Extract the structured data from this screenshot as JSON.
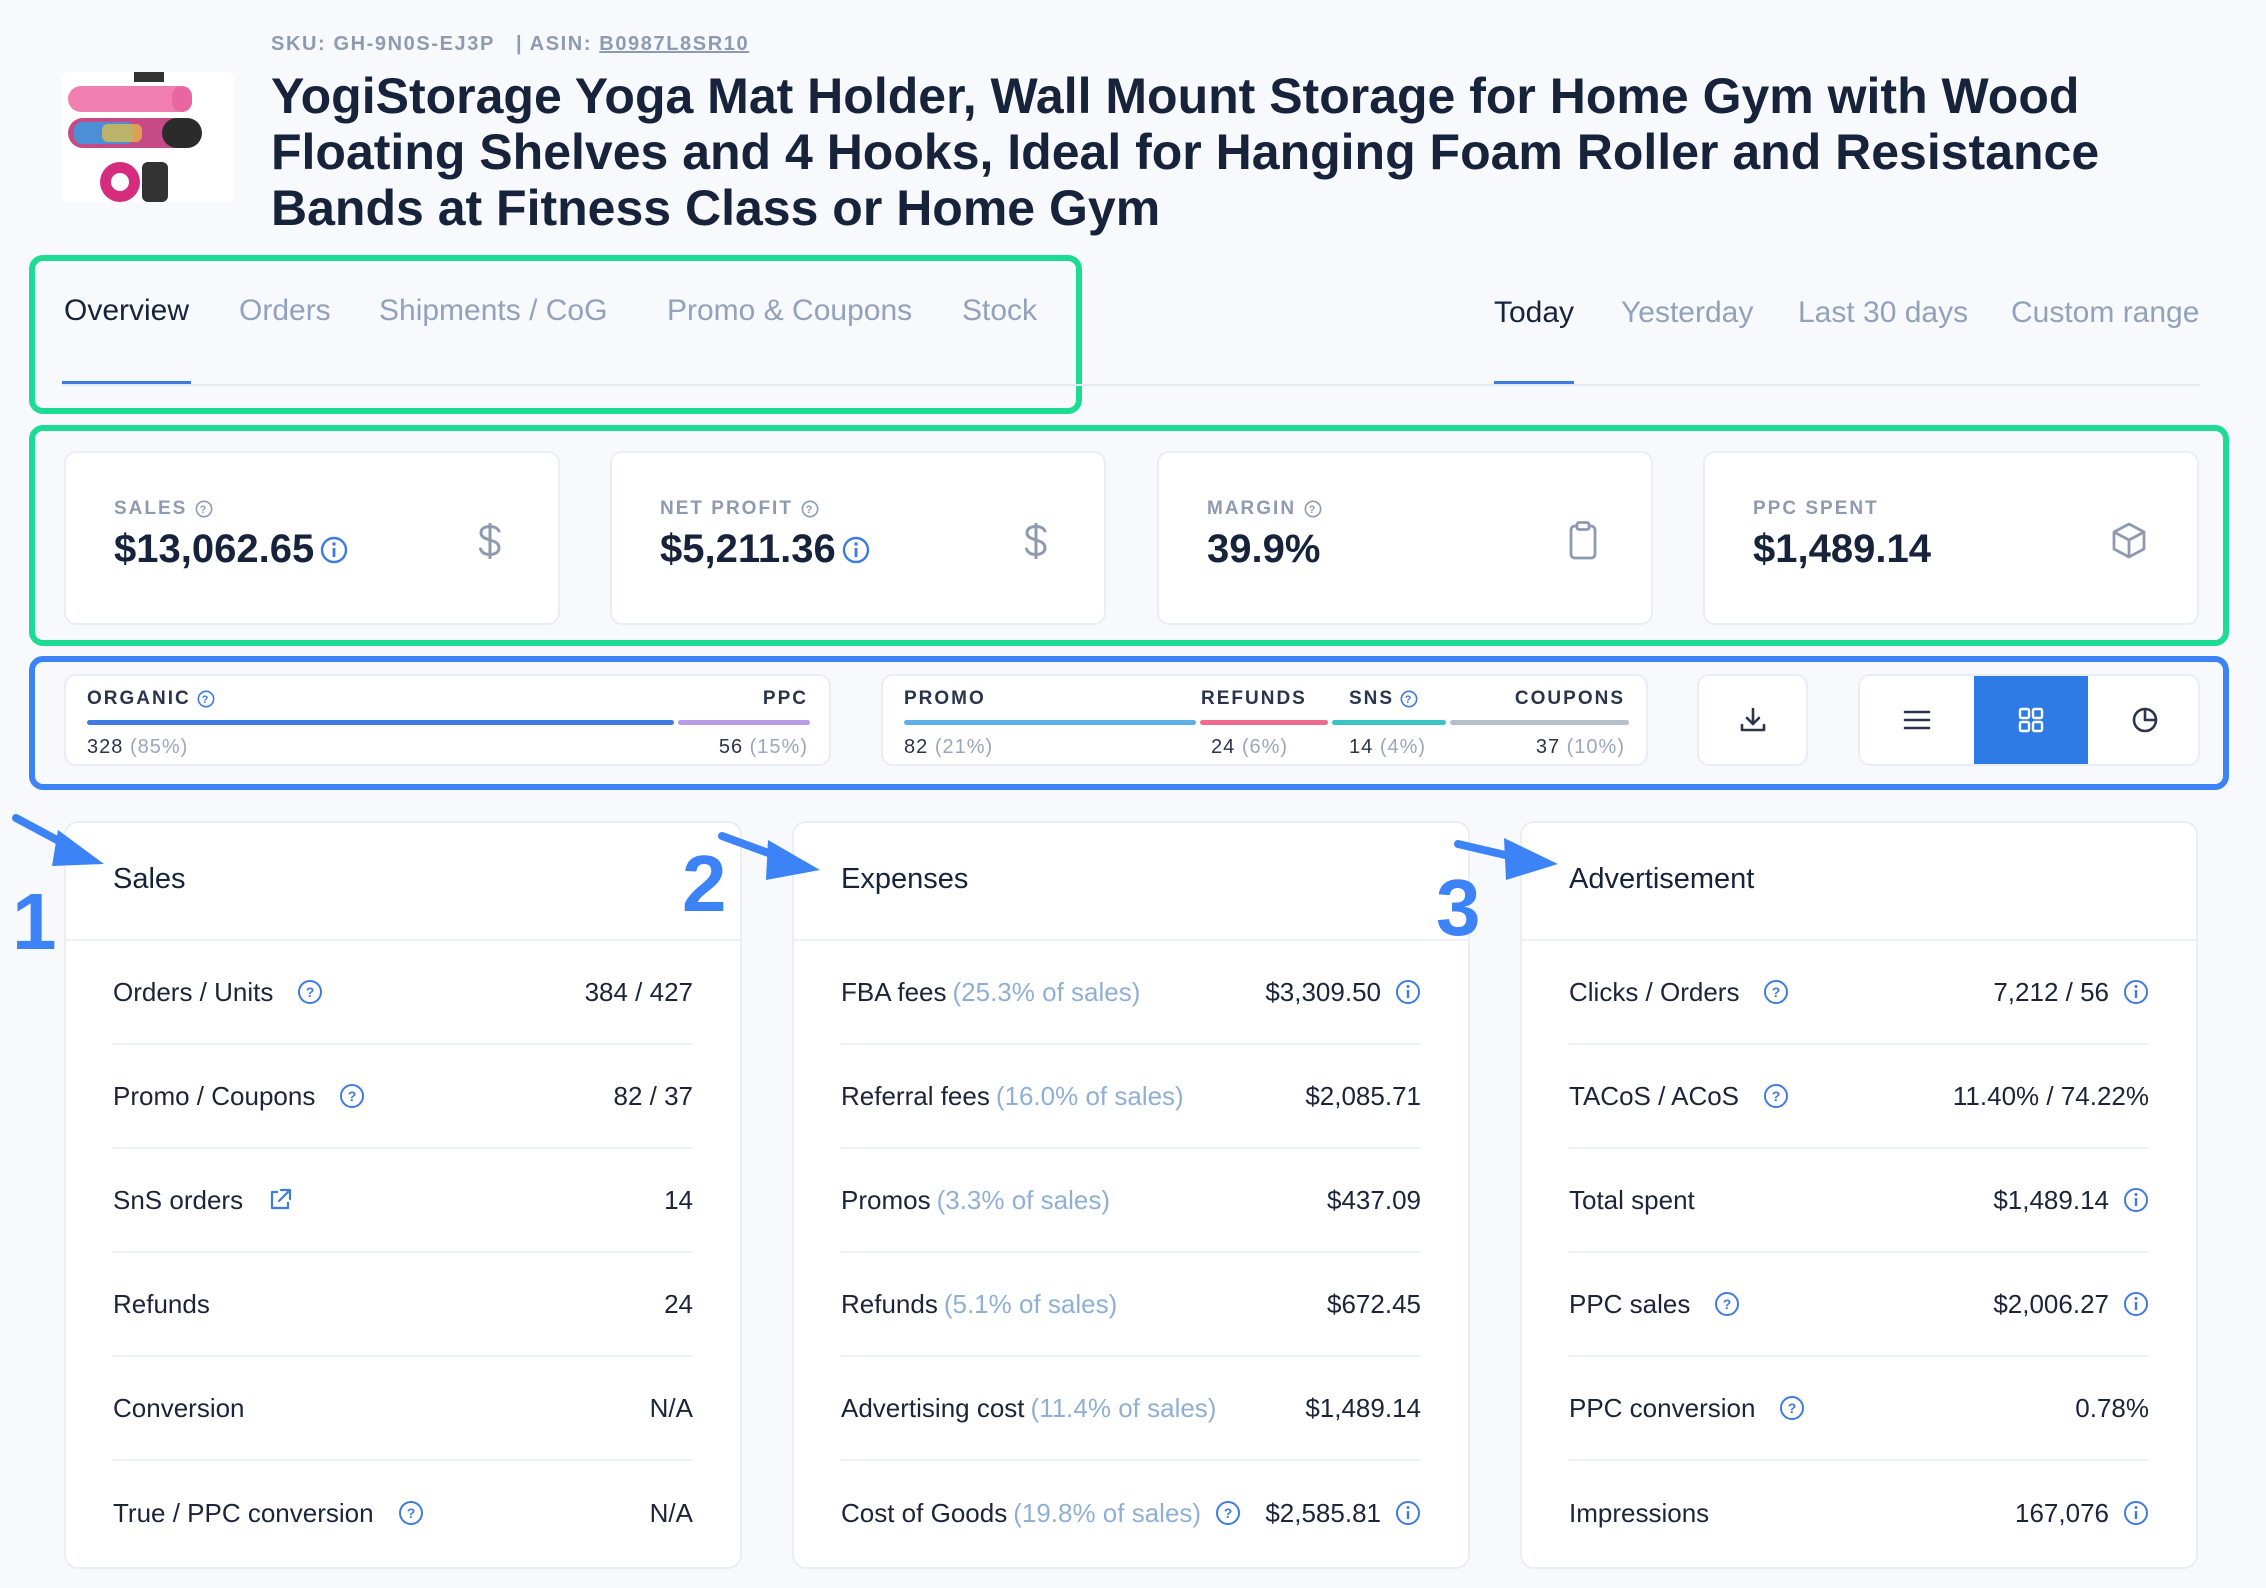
{
  "header": {
    "sku": "SKU: GH-9N0S-EJ3P",
    "asin_prefix": "| ASIN:",
    "asin": "B0987L8SR10",
    "title": "YogiStorage Yoga Mat Holder, Wall Mount Storage for Home Gym with Wood Floating Shelves and 4 Hooks, Ideal for Hanging Foam Roller and Resistance Bands at Fitness Class or Home Gym"
  },
  "tabs": [
    "Overview",
    "Orders",
    "Shipments / CoG",
    "Promo & Coupons",
    "Stock"
  ],
  "ranges": [
    "Today",
    "Yesterday",
    "Last 30 days",
    "Custom range"
  ],
  "kpis": [
    {
      "label": "SALES",
      "value": "$13,062.65",
      "icon": "dollar-icon"
    },
    {
      "label": "NET PROFIT",
      "value": "$5,211.36",
      "icon": "dollar-icon"
    },
    {
      "label": "MARGIN",
      "value": "39.9%",
      "icon": "clipboard-icon"
    },
    {
      "label": "PPC SPENT",
      "value": "$1,489.14",
      "icon": "box-icon"
    }
  ],
  "orders_split": {
    "organic": {
      "label": "ORGANIC",
      "count": "328",
      "pct": "(85%)",
      "share": 0.85
    },
    "ppc": {
      "label": "PPC",
      "count": "56",
      "pct": "(15%)",
      "share": 0.15
    }
  },
  "promo_split": {
    "promo": {
      "label": "PROMO",
      "count": "82",
      "pct": "(21%)"
    },
    "refunds": {
      "label": "REFUNDS",
      "count": "24",
      "pct": "(6%)"
    },
    "sns": {
      "label": "SNS",
      "count": "14",
      "pct": "(4%)"
    },
    "coupons": {
      "label": "COUPONS",
      "count": "37",
      "pct": "(10%)"
    }
  },
  "colors": {
    "accent": "#3b83f6",
    "frame_green": "#1bdc92",
    "organic": "#3f7ae0",
    "ppc": "#b79ce8",
    "promo": "#5eaee8",
    "refunds": "#ee6b8e",
    "sns": "#3cc3c8",
    "coupons": "#b7bfcc"
  },
  "annotations": [
    "1",
    "2",
    "3"
  ],
  "sales": {
    "title": "Sales",
    "rows": [
      {
        "label": "Orders / Units",
        "value": "384 / 427"
      },
      {
        "label": "Promo / Coupons",
        "value": "82 / 37"
      },
      {
        "label": "SnS orders",
        "value": "14"
      },
      {
        "label": "Refunds",
        "value": "24"
      },
      {
        "label": "Conversion",
        "value": "N/A"
      },
      {
        "label": "True / PPC conversion",
        "value": "N/A"
      }
    ]
  },
  "expenses": {
    "title": "Expenses",
    "rows": [
      {
        "label": "FBA fees",
        "note": "(25.3% of sales)",
        "value": "$3,309.50"
      },
      {
        "label": "Referral fees",
        "note": "(16.0% of sales)",
        "value": "$2,085.71"
      },
      {
        "label": "Promos",
        "note": "(3.3% of sales)",
        "value": "$437.09"
      },
      {
        "label": "Refunds",
        "note": "(5.1% of sales)",
        "value": "$672.45"
      },
      {
        "label": "Advertising cost",
        "note": "(11.4% of sales)",
        "value": "$1,489.14"
      },
      {
        "label": "Cost of Goods",
        "note": "(19.8% of sales)",
        "value": "$2,585.81"
      }
    ]
  },
  "advertisement": {
    "title": "Advertisement",
    "rows": [
      {
        "label": "Clicks / Orders",
        "value": "7,212 / 56"
      },
      {
        "label": "TACoS / ACoS",
        "value": "11.40% / 74.22%"
      },
      {
        "label": "Total spent",
        "value": "$1,489.14"
      },
      {
        "label": "PPC sales",
        "value": "$2,006.27"
      },
      {
        "label": "PPC conversion",
        "value": "0.78%"
      },
      {
        "label": "Impressions",
        "value": "167,076"
      }
    ]
  }
}
